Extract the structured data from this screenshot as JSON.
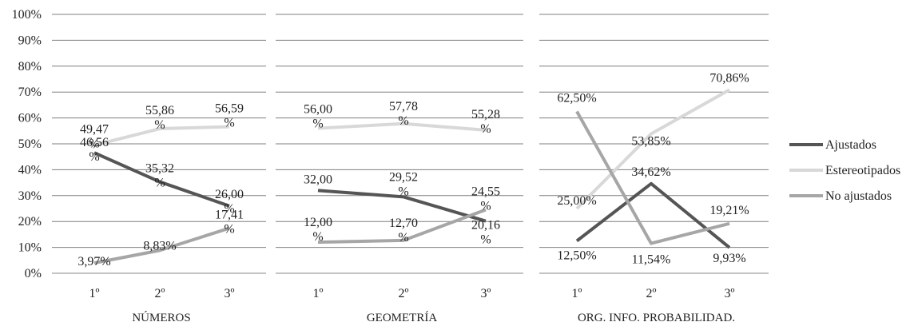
{
  "chart_data": {
    "type": "line",
    "y_tick_labels": [
      "0%",
      "10%",
      "20%",
      "30%",
      "40%",
      "50%",
      "60%",
      "70%",
      "80%",
      "90%",
      "100%"
    ],
    "ylim": [
      0,
      100
    ],
    "grid": true,
    "legend_position": "right",
    "legend": [
      {
        "name": "Ajustados",
        "color": "#555555"
      },
      {
        "name": "Estereotipados",
        "color": "#d8d8d8"
      },
      {
        "name": "No ajustados",
        "color": "#a6a6a6"
      }
    ],
    "panels": [
      {
        "title": "NÚMEROS",
        "categories": [
          "1º",
          "2º",
          "3º"
        ],
        "series": [
          {
            "name": "Ajustados",
            "values": [
              46.56,
              35.32,
              26.0
            ],
            "labels": [
              "46,56 %",
              "35,32 %",
              "26,00 %"
            ]
          },
          {
            "name": "Estereotipados",
            "values": [
              49.47,
              55.86,
              56.59
            ],
            "labels": [
              "49,47 %",
              "55,86 %",
              "56,59 %"
            ]
          },
          {
            "name": "No ajustados",
            "values": [
              3.97,
              8.83,
              17.41
            ],
            "labels": [
              "3,97%",
              "8,83%",
              "17,41 %"
            ]
          }
        ]
      },
      {
        "title": "GEOMETRÍA",
        "categories": [
          "1º",
          "2º",
          "3º"
        ],
        "series": [
          {
            "name": "Ajustados",
            "values": [
              32.0,
              29.52,
              20.16
            ],
            "labels": [
              "32,00",
              "29,52 %",
              "20,16 %"
            ]
          },
          {
            "name": "Estereotipados",
            "values": [
              56.0,
              57.78,
              55.28
            ],
            "labels": [
              "56,00 %",
              "57,78 %",
              "55,28 %"
            ]
          },
          {
            "name": "No ajustados",
            "values": [
              12.0,
              12.7,
              24.55
            ],
            "labels": [
              "12,00 %",
              "12,70 %",
              "24,55 %"
            ]
          }
        ]
      },
      {
        "title": "ORG. INFO. PROBABILIDAD.",
        "categories": [
          "1º",
          "2º",
          "3º"
        ],
        "series": [
          {
            "name": "Ajustados",
            "values": [
              12.5,
              34.62,
              9.93
            ],
            "labels": [
              "12,50%",
              "34,62%",
              "9,93%"
            ]
          },
          {
            "name": "Estereotipados",
            "values": [
              25.0,
              53.85,
              70.86
            ],
            "labels": [
              "25,00%",
              "53,85%",
              "70,86%"
            ]
          },
          {
            "name": "No ajustados",
            "values": [
              62.5,
              11.54,
              19.21
            ],
            "labels": [
              "62,50%",
              "11,54%",
              "19,21%"
            ]
          }
        ]
      }
    ]
  }
}
